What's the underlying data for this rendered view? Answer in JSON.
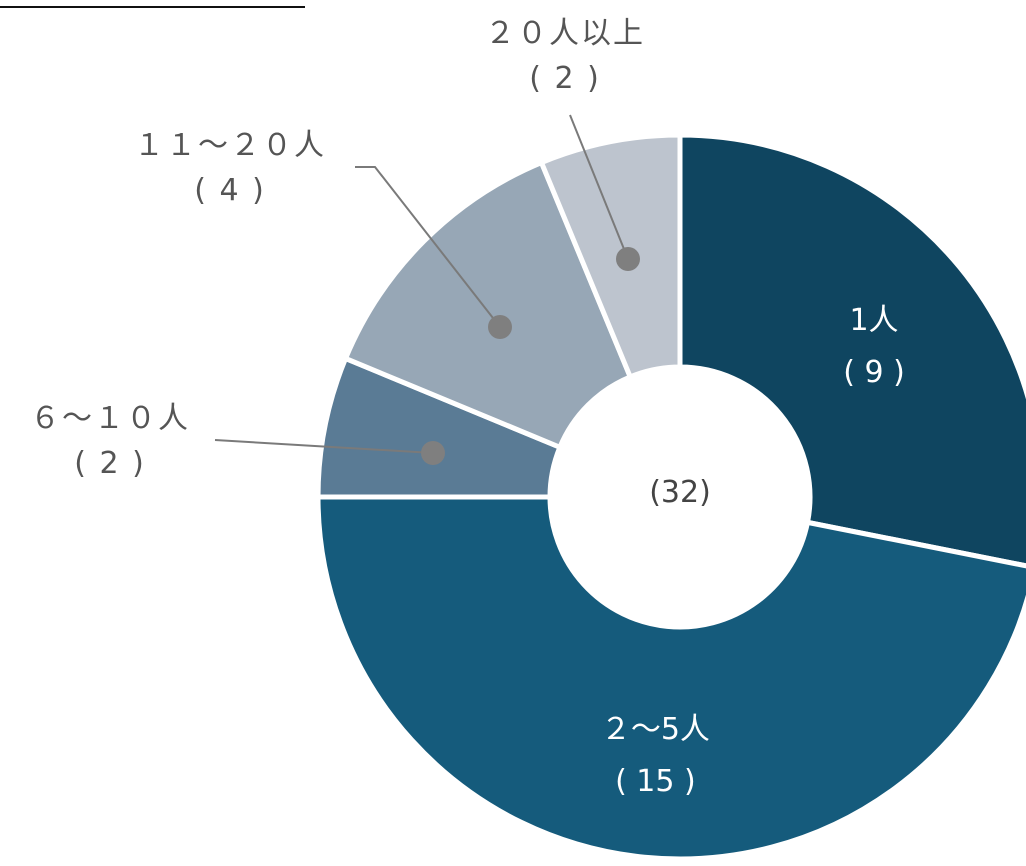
{
  "chart_data": {
    "type": "pie",
    "variant": "donut",
    "title": "",
    "center_label": "(32)",
    "categories": [
      "1人",
      "2～5人",
      "6～10人",
      "11～20人",
      "20人以上"
    ],
    "values": [
      9,
      15,
      2,
      4,
      2
    ],
    "value_labels": [
      "( 9 )",
      "( 15 )",
      "( 2 )",
      "( 4 )",
      "( 2 )"
    ],
    "display_names": [
      "1人",
      "２～5人",
      "６～１０人",
      "１１～２０人",
      "２０人以上"
    ],
    "colors": [
      "#0f4560",
      "#155b7c",
      "#5a7b95",
      "#97a7b6",
      "#bdc4ce"
    ],
    "label_placement": [
      "inside",
      "inside",
      "outside-left",
      "outside-left",
      "outside-top"
    ],
    "legend": "none"
  }
}
